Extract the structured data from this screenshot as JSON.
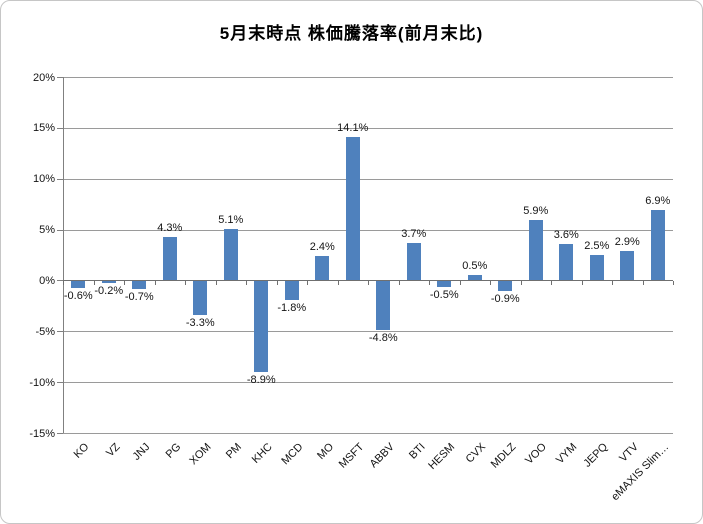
{
  "chart_data": {
    "type": "bar",
    "title": "5月末時点 株価騰落率(前月末比)",
    "categories": [
      "KO",
      "VZ",
      "JNJ",
      "PG",
      "XOM",
      "PM",
      "KHC",
      "MCD",
      "MO",
      "MSFT",
      "ABBV",
      "BTI",
      "HESM",
      "CVX",
      "MDLZ",
      "VOO",
      "VYM",
      "JEPQ",
      "VTV",
      "eMAXIS Slim…"
    ],
    "values": [
      -0.6,
      -0.2,
      -0.7,
      4.3,
      -3.3,
      5.1,
      -8.9,
      -1.8,
      2.4,
      14.1,
      -4.8,
      3.7,
      -0.5,
      0.5,
      -0.9,
      5.9,
      3.6,
      2.5,
      2.9,
      6.9
    ],
    "data_labels": [
      "-0.6%",
      "-0.2%",
      "-0.7%",
      "4.3%",
      "-3.3%",
      "5.1%",
      "-8.9%",
      "-1.8%",
      "2.4%",
      "14.1%",
      "-4.8%",
      "3.7%",
      "-0.5%",
      "0.5%",
      "-0.9%",
      "5.9%",
      "3.6%",
      "2.5%",
      "2.9%",
      "6.9%"
    ],
    "y_ticks": [
      {
        "value": 20,
        "label": "20%"
      },
      {
        "value": 15,
        "label": "15%"
      },
      {
        "value": 10,
        "label": "10%"
      },
      {
        "value": 5,
        "label": "5%"
      },
      {
        "value": 0,
        "label": "0%"
      },
      {
        "value": -5,
        "label": "-5%"
      },
      {
        "value": -10,
        "label": "-10%"
      },
      {
        "value": -15,
        "label": "-15%"
      }
    ],
    "ylim": [
      -15,
      20
    ],
    "grid": true,
    "legend": "none",
    "colors": {
      "bar": "#4F81BD",
      "gridline": "#9a9a9a",
      "axis": "#808080",
      "text": "#141414",
      "title": "#000000",
      "chart_border": "#c6c6c6"
    }
  }
}
